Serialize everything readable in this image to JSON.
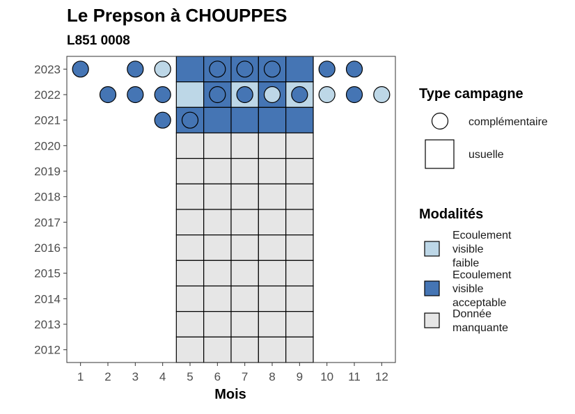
{
  "chart_data": {
    "type": "heatmap",
    "title": "Le Prepson à CHOUPPES",
    "subtitle": "L851 0008",
    "xlabel": "Mois",
    "ylabel": "",
    "x_ticks": [
      "1",
      "2",
      "3",
      "4",
      "5",
      "6",
      "7",
      "8",
      "9",
      "10",
      "11",
      "12"
    ],
    "y_ticks": [
      "2012",
      "2013",
      "2014",
      "2015",
      "2016",
      "2017",
      "2018",
      "2019",
      "2020",
      "2021",
      "2022",
      "2023"
    ],
    "xlim": [
      1,
      12
    ],
    "ylim": [
      2012,
      2023
    ],
    "legend_placement": "right",
    "colors": {
      "faible": "#bdd7e7",
      "acceptable": "#4575b4",
      "manquante": "#e6e6e6"
    },
    "legend_type": {
      "title": "Type campagne",
      "items": [
        {
          "key": "complementaire",
          "label": "complémentaire",
          "shape": "circle"
        },
        {
          "key": "usuelle",
          "label": "usuelle",
          "shape": "square"
        }
      ]
    },
    "legend_modalites": {
      "title": "Modalités",
      "items": [
        {
          "key": "faible",
          "lines": [
            "Ecoulement",
            "visible",
            "faible"
          ]
        },
        {
          "key": "acceptable",
          "lines": [
            "Ecoulement",
            "visible",
            "acceptable"
          ]
        },
        {
          "key": "manquante",
          "lines": [
            "Donnée",
            "manquante"
          ]
        }
      ]
    },
    "usuelle": [
      {
        "year": 2023,
        "month": 5,
        "value": "acceptable"
      },
      {
        "year": 2023,
        "month": 6,
        "value": "acceptable"
      },
      {
        "year": 2023,
        "month": 7,
        "value": "acceptable"
      },
      {
        "year": 2023,
        "month": 8,
        "value": "acceptable"
      },
      {
        "year": 2023,
        "month": 9,
        "value": "acceptable"
      },
      {
        "year": 2022,
        "month": 5,
        "value": "faible"
      },
      {
        "year": 2022,
        "month": 6,
        "value": "acceptable"
      },
      {
        "year": 2022,
        "month": 7,
        "value": "faible"
      },
      {
        "year": 2022,
        "month": 8,
        "value": "acceptable"
      },
      {
        "year": 2022,
        "month": 9,
        "value": "faible"
      },
      {
        "year": 2021,
        "month": 5,
        "value": "acceptable"
      },
      {
        "year": 2021,
        "month": 6,
        "value": "acceptable"
      },
      {
        "year": 2021,
        "month": 7,
        "value": "acceptable"
      },
      {
        "year": 2021,
        "month": 8,
        "value": "acceptable"
      },
      {
        "year": 2021,
        "month": 9,
        "value": "acceptable"
      },
      {
        "year": 2020,
        "month": 5,
        "value": "manquante"
      },
      {
        "year": 2020,
        "month": 6,
        "value": "manquante"
      },
      {
        "year": 2020,
        "month": 7,
        "value": "manquante"
      },
      {
        "year": 2020,
        "month": 8,
        "value": "manquante"
      },
      {
        "year": 2020,
        "month": 9,
        "value": "manquante"
      },
      {
        "year": 2019,
        "month": 5,
        "value": "manquante"
      },
      {
        "year": 2019,
        "month": 6,
        "value": "manquante"
      },
      {
        "year": 2019,
        "month": 7,
        "value": "manquante"
      },
      {
        "year": 2019,
        "month": 8,
        "value": "manquante"
      },
      {
        "year": 2019,
        "month": 9,
        "value": "manquante"
      },
      {
        "year": 2018,
        "month": 5,
        "value": "manquante"
      },
      {
        "year": 2018,
        "month": 6,
        "value": "manquante"
      },
      {
        "year": 2018,
        "month": 7,
        "value": "manquante"
      },
      {
        "year": 2018,
        "month": 8,
        "value": "manquante"
      },
      {
        "year": 2018,
        "month": 9,
        "value": "manquante"
      },
      {
        "year": 2017,
        "month": 5,
        "value": "manquante"
      },
      {
        "year": 2017,
        "month": 6,
        "value": "manquante"
      },
      {
        "year": 2017,
        "month": 7,
        "value": "manquante"
      },
      {
        "year": 2017,
        "month": 8,
        "value": "manquante"
      },
      {
        "year": 2017,
        "month": 9,
        "value": "manquante"
      },
      {
        "year": 2016,
        "month": 5,
        "value": "manquante"
      },
      {
        "year": 2016,
        "month": 6,
        "value": "manquante"
      },
      {
        "year": 2016,
        "month": 7,
        "value": "manquante"
      },
      {
        "year": 2016,
        "month": 8,
        "value": "manquante"
      },
      {
        "year": 2016,
        "month": 9,
        "value": "manquante"
      },
      {
        "year": 2015,
        "month": 5,
        "value": "manquante"
      },
      {
        "year": 2015,
        "month": 6,
        "value": "manquante"
      },
      {
        "year": 2015,
        "month": 7,
        "value": "manquante"
      },
      {
        "year": 2015,
        "month": 8,
        "value": "manquante"
      },
      {
        "year": 2015,
        "month": 9,
        "value": "manquante"
      },
      {
        "year": 2014,
        "month": 5,
        "value": "manquante"
      },
      {
        "year": 2014,
        "month": 6,
        "value": "manquante"
      },
      {
        "year": 2014,
        "month": 7,
        "value": "manquante"
      },
      {
        "year": 2014,
        "month": 8,
        "value": "manquante"
      },
      {
        "year": 2014,
        "month": 9,
        "value": "manquante"
      },
      {
        "year": 2013,
        "month": 5,
        "value": "manquante"
      },
      {
        "year": 2013,
        "month": 6,
        "value": "manquante"
      },
      {
        "year": 2013,
        "month": 7,
        "value": "manquante"
      },
      {
        "year": 2013,
        "month": 8,
        "value": "manquante"
      },
      {
        "year": 2013,
        "month": 9,
        "value": "manquante"
      },
      {
        "year": 2012,
        "month": 5,
        "value": "manquante"
      },
      {
        "year": 2012,
        "month": 6,
        "value": "manquante"
      },
      {
        "year": 2012,
        "month": 7,
        "value": "manquante"
      },
      {
        "year": 2012,
        "month": 8,
        "value": "manquante"
      },
      {
        "year": 2012,
        "month": 9,
        "value": "manquante"
      }
    ],
    "complementaire": [
      {
        "year": 2023,
        "month": 1,
        "value": "acceptable"
      },
      {
        "year": 2023,
        "month": 3,
        "value": "acceptable"
      },
      {
        "year": 2023,
        "month": 4,
        "value": "faible"
      },
      {
        "year": 2023,
        "month": 6,
        "value": "acceptable"
      },
      {
        "year": 2023,
        "month": 7,
        "value": "acceptable"
      },
      {
        "year": 2023,
        "month": 8,
        "value": "acceptable"
      },
      {
        "year": 2023,
        "month": 10,
        "value": "acceptable"
      },
      {
        "year": 2023,
        "month": 11,
        "value": "acceptable"
      },
      {
        "year": 2022,
        "month": 2,
        "value": "acceptable"
      },
      {
        "year": 2022,
        "month": 3,
        "value": "acceptable"
      },
      {
        "year": 2022,
        "month": 4,
        "value": "acceptable"
      },
      {
        "year": 2022,
        "month": 6,
        "value": "acceptable"
      },
      {
        "year": 2022,
        "month": 7,
        "value": "acceptable"
      },
      {
        "year": 2022,
        "month": 8,
        "value": "faible"
      },
      {
        "year": 2022,
        "month": 9,
        "value": "acceptable"
      },
      {
        "year": 2022,
        "month": 10,
        "value": "faible"
      },
      {
        "year": 2022,
        "month": 11,
        "value": "acceptable"
      },
      {
        "year": 2022,
        "month": 12,
        "value": "faible"
      },
      {
        "year": 2021,
        "month": 4,
        "value": "acceptable"
      },
      {
        "year": 2021,
        "month": 5,
        "value": "acceptable"
      }
    ]
  }
}
